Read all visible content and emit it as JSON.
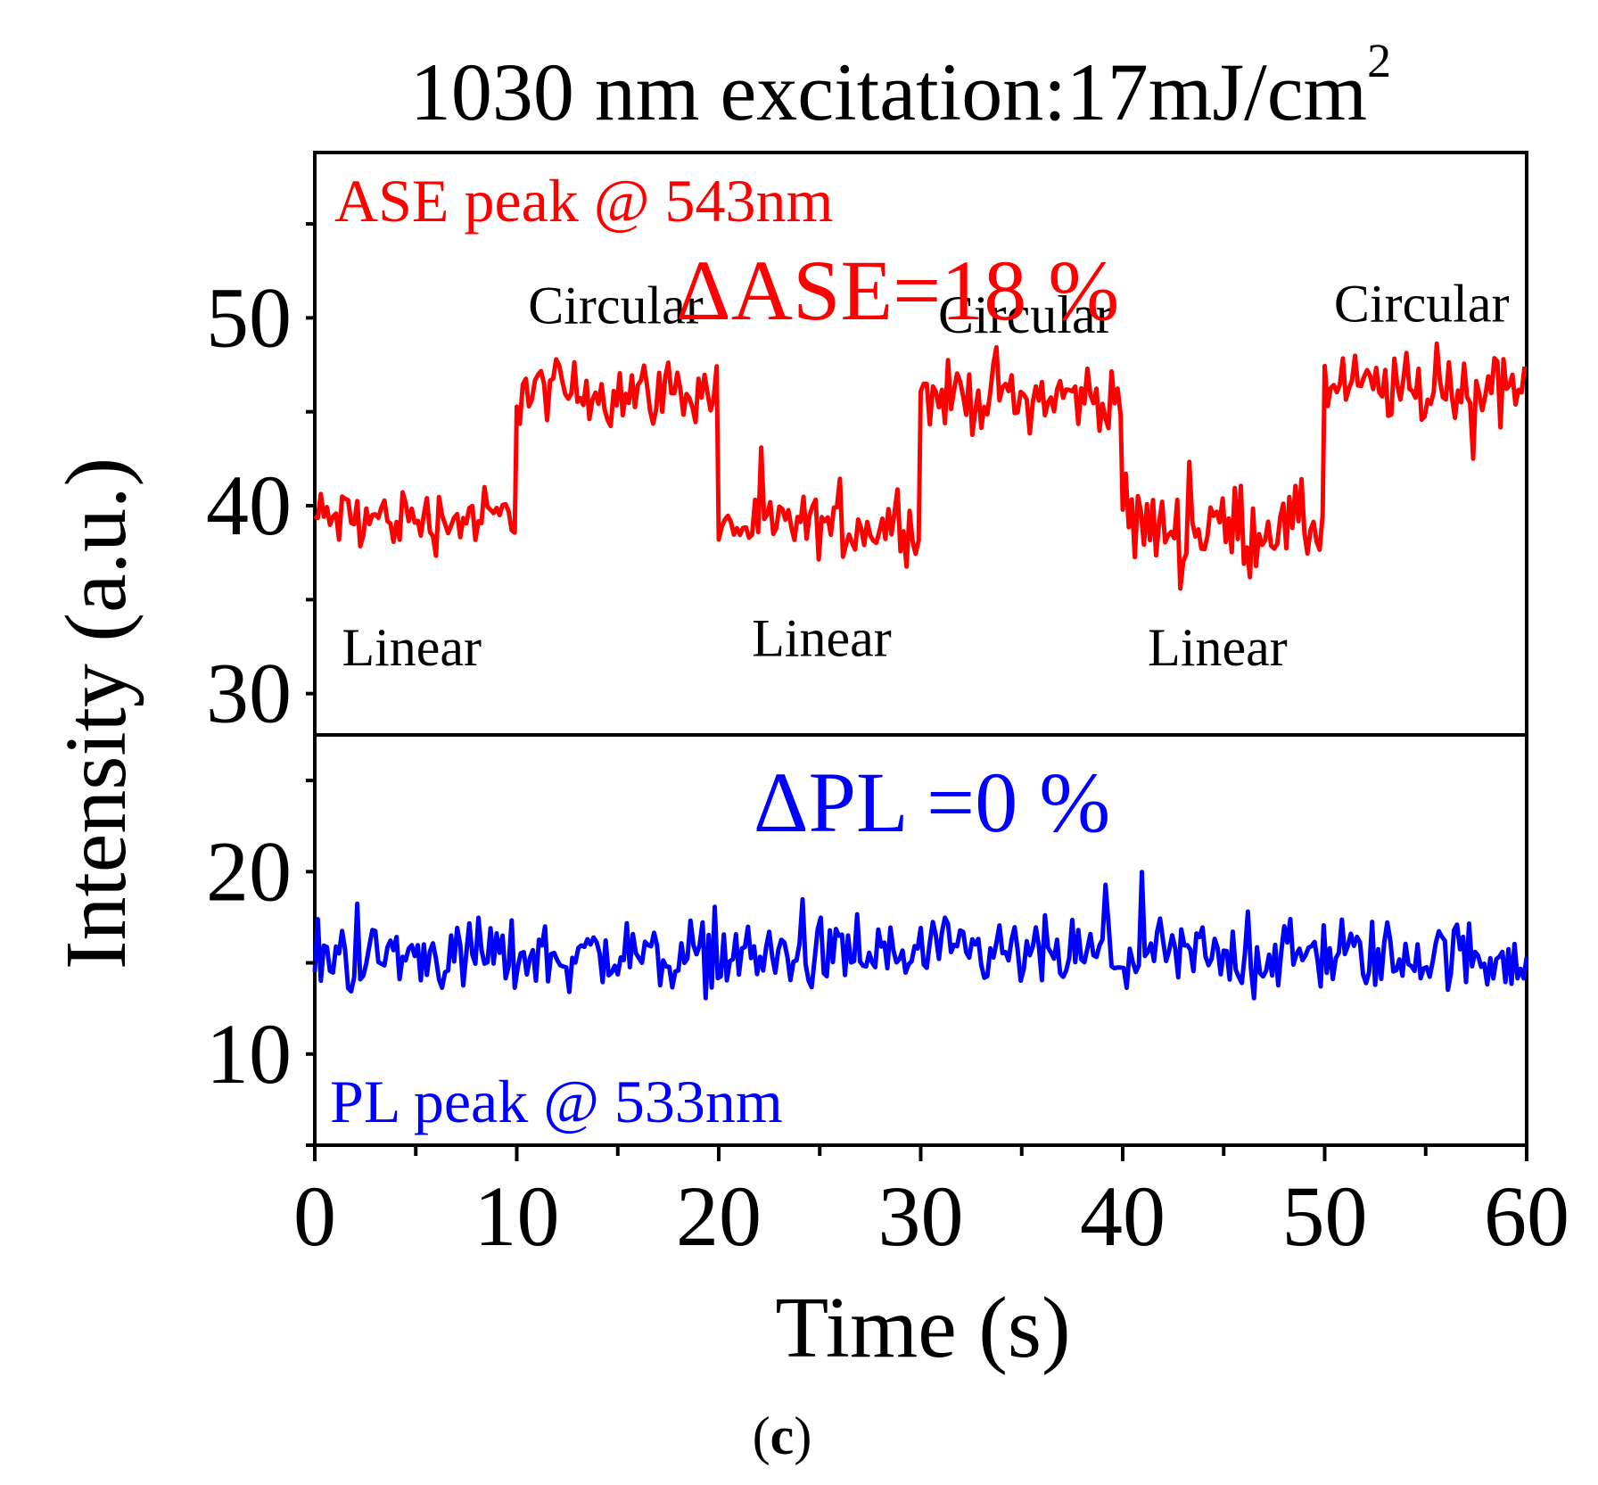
{
  "chart_data": {
    "type": "line",
    "title": "1030 nm excitation:17mJ/cm",
    "title_superscript": "2",
    "xlabel": "Time (s)",
    "ylabel": "Intensity (a.u.)",
    "xlim": [
      0,
      60
    ],
    "x_ticks": [
      0,
      10,
      20,
      30,
      40,
      50,
      60
    ],
    "caption_open": "(",
    "caption_letter": "c",
    "caption_close": ")",
    "colors": {
      "ase": "#ff0000",
      "pl": "#0000ff",
      "axis": "#000000"
    },
    "panels": [
      {
        "id": "ase",
        "ylim": [
          27.8,
          58.8
        ],
        "y_ticks": [
          30,
          40,
          50
        ],
        "y_minor_ticks": [
          35,
          45,
          55
        ],
        "series": {
          "name": "ASE peak @ 543nm",
          "color": "#ff0000",
          "segments": [
            {
              "x0": 0,
              "x1": 10,
              "mean": 39.3,
              "amp": 1.6
            },
            {
              "x0": 10,
              "x1": 20,
              "mean": 46.1,
              "amp": 1.6
            },
            {
              "x0": 20,
              "x1": 30,
              "mean": 38.9,
              "amp": 1.5
            },
            {
              "x0": 30,
              "x1": 40,
              "mean": 45.8,
              "amp": 1.6
            },
            {
              "x0": 40,
              "x1": 50,
              "mean": 38.9,
              "amp": 2.0
            },
            {
              "x0": 50,
              "x1": 60,
              "mean": 46.2,
              "amp": 1.8
            }
          ]
        },
        "annotations": {
          "peak_label": "ASE peak @ 543nm",
          "delta_label": "ΔASE=18 %",
          "circular_labels": [
            {
              "text": "Circular",
              "x": 14.9,
              "y": 49.7
            },
            {
              "text": "Circular",
              "x": 35.2,
              "y": 49.2
            },
            {
              "text": "Circular",
              "x": 54.8,
              "y": 49.8
            }
          ],
          "linear_labels": [
            {
              "text": "Linear",
              "x": 4.8,
              "y": 31.5
            },
            {
              "text": "Linear",
              "x": 25.1,
              "y": 32.0
            },
            {
              "text": "Linear",
              "x": 44.7,
              "y": 31.5
            }
          ]
        }
      },
      {
        "id": "pl",
        "ylim": [
          5,
          27.5
        ],
        "y_ticks": [
          10,
          20
        ],
        "y_minor_ticks": [
          5,
          15,
          25
        ],
        "series": {
          "name": "PL peak @ 533nm",
          "color": "#0000ff",
          "segments": [
            {
              "x0": 0,
              "x1": 60,
              "mean": 15.4,
              "amp": 1.8
            }
          ]
        },
        "annotations": {
          "peak_label": "PL peak @ 533nm",
          "delta_label": "ΔPL =0 %"
        }
      }
    ]
  }
}
